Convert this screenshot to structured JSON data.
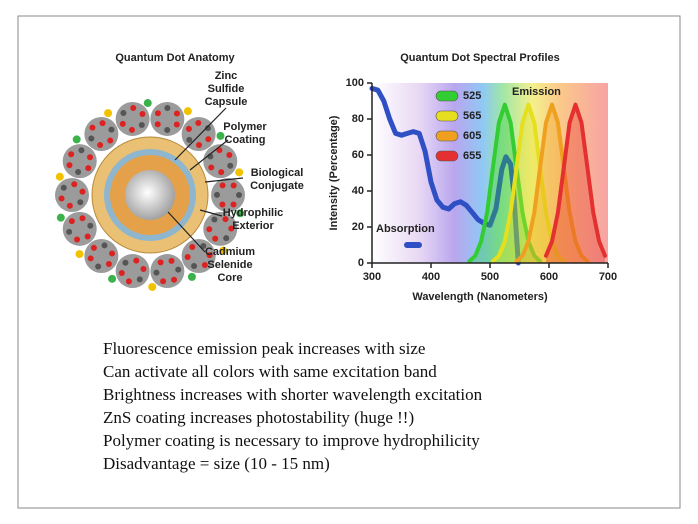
{
  "diagram": {
    "title": "Quantum Dot Anatomy",
    "labels": [
      [
        "Zinc",
        "Sulfide",
        "Capsule"
      ],
      [
        "Polymer",
        "Coating"
      ],
      [
        "Biological",
        "Conjugate"
      ],
      [
        "Hydrophilic",
        "Exterior"
      ],
      [
        "Cadmium",
        "Selenide",
        "Core"
      ]
    ]
  },
  "chart_data": {
    "type": "line",
    "title": "Quantum Dot Spectral Profiles",
    "xlabel": "Wavelength (Nanometers)",
    "ylabel": "Intensity (Percentage)",
    "xlim": [
      300,
      700
    ],
    "ylim": [
      0,
      100
    ],
    "xticks": [
      300,
      400,
      500,
      600,
      700
    ],
    "yticks": [
      0,
      20,
      40,
      60,
      80,
      100
    ],
    "annotation": "Emission",
    "series": [
      {
        "name": "Absorption",
        "color": "#2f4fc4",
        "x": [
          300,
          310,
          320,
          330,
          340,
          350,
          360,
          370,
          380,
          390,
          400,
          410,
          420,
          430,
          440,
          450,
          460,
          470,
          480,
          490,
          500,
          510,
          520,
          527,
          535,
          540,
          545,
          548
        ],
        "values": [
          97,
          96,
          90,
          80,
          72,
          71,
          72,
          73,
          72,
          62,
          45,
          35,
          31,
          30,
          33,
          34,
          32,
          28,
          24,
          22,
          21,
          30,
          52,
          59,
          55,
          40,
          15,
          0
        ]
      },
      {
        "name": "525",
        "color": "#33cc33",
        "x": [
          465,
          475,
          485,
          495,
          505,
          515,
          525,
          535,
          545,
          555,
          565,
          575,
          585
        ],
        "values": [
          1,
          4,
          12,
          28,
          53,
          78,
          88,
          78,
          53,
          28,
          12,
          4,
          1
        ]
      },
      {
        "name": "565",
        "color": "#e6df1f",
        "x": [
          505,
          515,
          525,
          535,
          545,
          555,
          565,
          575,
          585,
          595,
          605,
          615,
          625
        ],
        "values": [
          1,
          4,
          12,
          28,
          53,
          78,
          88,
          78,
          53,
          28,
          12,
          4,
          1
        ]
      },
      {
        "name": "605",
        "color": "#f0a020",
        "x": [
          545,
          555,
          565,
          575,
          585,
          595,
          605,
          615,
          625,
          635,
          645,
          655,
          665
        ],
        "values": [
          1,
          4,
          12,
          28,
          53,
          78,
          88,
          78,
          53,
          28,
          12,
          4,
          1
        ]
      },
      {
        "name": "655",
        "color": "#e43030",
        "x": [
          595,
          605,
          615,
          625,
          635,
          645,
          655,
          665,
          675,
          685,
          695
        ],
        "values": [
          4,
          12,
          28,
          53,
          78,
          88,
          78,
          53,
          28,
          12,
          4
        ]
      }
    ]
  },
  "bullets": [
    "Fluorescence emission peak increases with size",
    "Can activate all colors with same excitation band",
    "Brightness increases with shorter wavelength excitation",
    "ZnS coating increases photostability (huge !!)",
    "Polymer coating is necessary to improve hydrophilicity",
    "Disadvantage = size (10 - 15 nm)"
  ]
}
